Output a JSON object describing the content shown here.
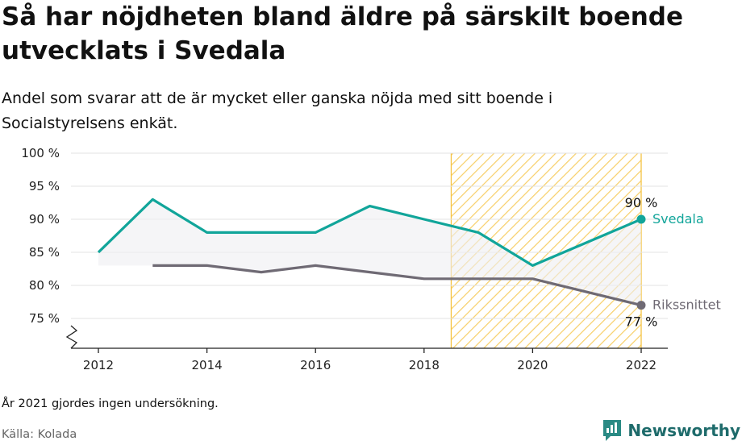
{
  "page": {
    "title": "Så har nöjdheten bland äldre på särskilt boende utvecklats i Svedala",
    "subtitle": "Andel som svarar att de är mycket eller ganska nöjda med sitt boende i Socialstyrelsens enkät.",
    "note": "År 2021 gjordes ingen undersökning.",
    "source": "Källa: Kolada",
    "brand": "Newsworthy"
  },
  "colors": {
    "svedala": "#11a59a",
    "riket": "#6f6a74",
    "hatch": "#f5c342",
    "grid": "#e3e3e3",
    "shade": "#efeff2",
    "brand": "#1e6b6b"
  },
  "chart_data": {
    "type": "line",
    "ylim": [
      70,
      100
    ],
    "xlim": [
      2011.5,
      2022.5
    ],
    "yticks": [
      75,
      80,
      85,
      90,
      95,
      100
    ],
    "ytick_labels": [
      "75 %",
      "80 %",
      "85 %",
      "90 %",
      "95 %",
      "100 %"
    ],
    "xticks": [
      2012,
      2014,
      2016,
      2018,
      2020,
      2022
    ],
    "xtick_labels": [
      "2012",
      "2014",
      "2016",
      "2018",
      "2020",
      "2022"
    ],
    "highlight_range": [
      2018.5,
      2022
    ],
    "axis_break": true,
    "grid": true,
    "series": [
      {
        "name": "Svedala",
        "color_key": "svedala",
        "x": [
          2012,
          2013,
          2014,
          2015,
          2016,
          2017,
          2018,
          2019,
          2020,
          2022
        ],
        "values": [
          85,
          93,
          88,
          88,
          88,
          92,
          90,
          88,
          83,
          90
        ],
        "end_label": "90 %"
      },
      {
        "name": "Rikssnittet",
        "color_key": "riket",
        "x": [
          2013,
          2014,
          2015,
          2016,
          2017,
          2018,
          2019,
          2020,
          2022
        ],
        "values": [
          83,
          83,
          82,
          83,
          82,
          81,
          81,
          81,
          77
        ],
        "end_label": "77 %"
      }
    ]
  }
}
